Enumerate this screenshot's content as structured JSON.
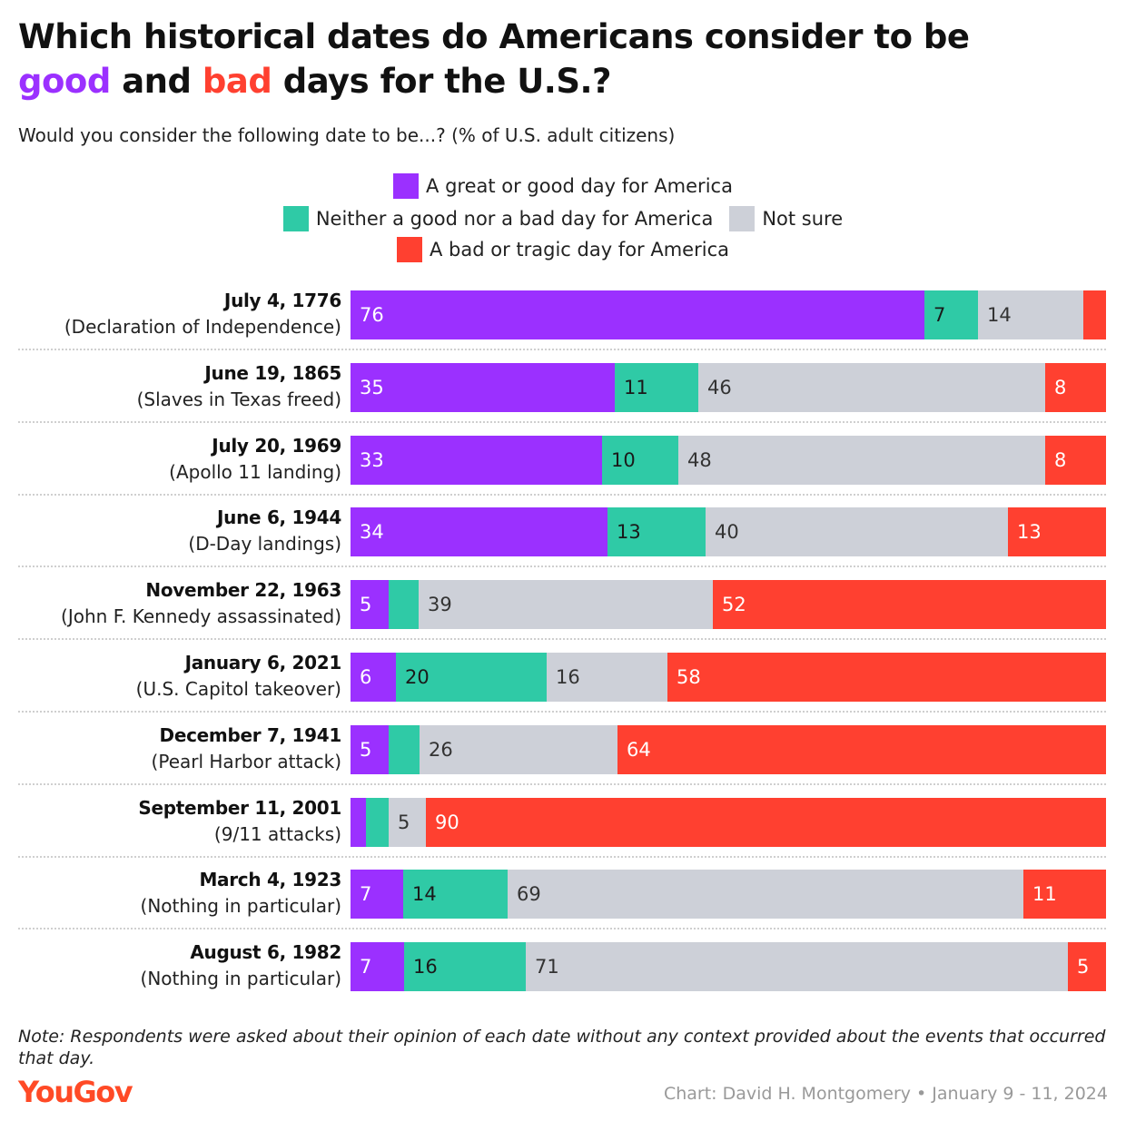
{
  "header": {
    "title_part1": "Which historical dates do Americans consider to be",
    "title_good": "good",
    "title_and": "and",
    "title_bad": "bad",
    "title_part2": "days for the U.S.?",
    "subtitle": "Would you consider the following date to be...? (% of U.S. adult citizens)"
  },
  "legend": {
    "good": "A great or good day for America",
    "neither": "Neither a good nor a bad day for America",
    "not_sure": "Not sure",
    "bad": "A bad or tragic day for America"
  },
  "colors": {
    "good": "#9b30ff",
    "neither": "#2fcaa6",
    "not_sure": "#cdd0d8",
    "bad": "#ff4030"
  },
  "chart_data": {
    "type": "bar",
    "orientation": "horizontal",
    "stacked": true,
    "title": "Which historical dates do Americans consider to be good and bad days for the U.S.?",
    "subtitle": "Would you consider the following date to be...? (% of U.S. adult citizens)",
    "xlim": [
      0,
      100
    ],
    "legend_position": "top-center",
    "categories": [
      {
        "date": "July 4, 1776",
        "event": "(Declaration of Independence)"
      },
      {
        "date": "June 19, 1865",
        "event": "(Slaves in Texas freed)"
      },
      {
        "date": "July 20, 1969",
        "event": "(Apollo 11 landing)"
      },
      {
        "date": "June 6, 1944",
        "event": "(D-Day landings)"
      },
      {
        "date": "November 22, 1963",
        "event": "(John F. Kennedy assassinated)"
      },
      {
        "date": "January 6, 2021",
        "event": "(U.S. Capitol takeover)"
      },
      {
        "date": "December 7, 1941",
        "event": "(Pearl Harbor attack)"
      },
      {
        "date": "September 11, 2001",
        "event": "(9/11 attacks)"
      },
      {
        "date": "March 4, 1923",
        "event": "(Nothing in particular)"
      },
      {
        "date": "August 6, 1982",
        "event": "(Nothing in particular)"
      }
    ],
    "series": [
      {
        "name": "A great or good day for America",
        "key": "good",
        "values": [
          76,
          35,
          33,
          34,
          5,
          6,
          5,
          2,
          7,
          7
        ],
        "labels": [
          "76",
          "35",
          "33",
          "34",
          "5",
          "6",
          "5",
          "",
          "7",
          "7"
        ]
      },
      {
        "name": "Neither a good nor a bad day for America",
        "key": "neither",
        "values": [
          7,
          11,
          10,
          13,
          4,
          20,
          4,
          3,
          14,
          16
        ],
        "labels": [
          "7",
          "11",
          "10",
          "13",
          "",
          "20",
          "",
          "",
          "14",
          "16"
        ]
      },
      {
        "name": "Not sure",
        "key": "not_sure",
        "values": [
          14,
          46,
          48,
          40,
          39,
          16,
          26,
          5,
          69,
          71
        ],
        "labels": [
          "14",
          "46",
          "48",
          "40",
          "39",
          "16",
          "26",
          "5",
          "69",
          "71"
        ]
      },
      {
        "name": "A bad or tragic day for America",
        "key": "bad",
        "values": [
          3,
          8,
          8,
          13,
          52,
          58,
          64,
          90,
          11,
          5
        ],
        "labels": [
          "",
          "8",
          "8",
          "13",
          "52",
          "58",
          "64",
          "90",
          "11",
          "5"
        ]
      }
    ]
  },
  "footer": {
    "note": "Note: Respondents were asked about their opinion of each date without any context provided about the events that occurred that day.",
    "logo": "YouGov",
    "credit": "Chart: David H. Montgomery • January 9 - 11, 2024"
  }
}
